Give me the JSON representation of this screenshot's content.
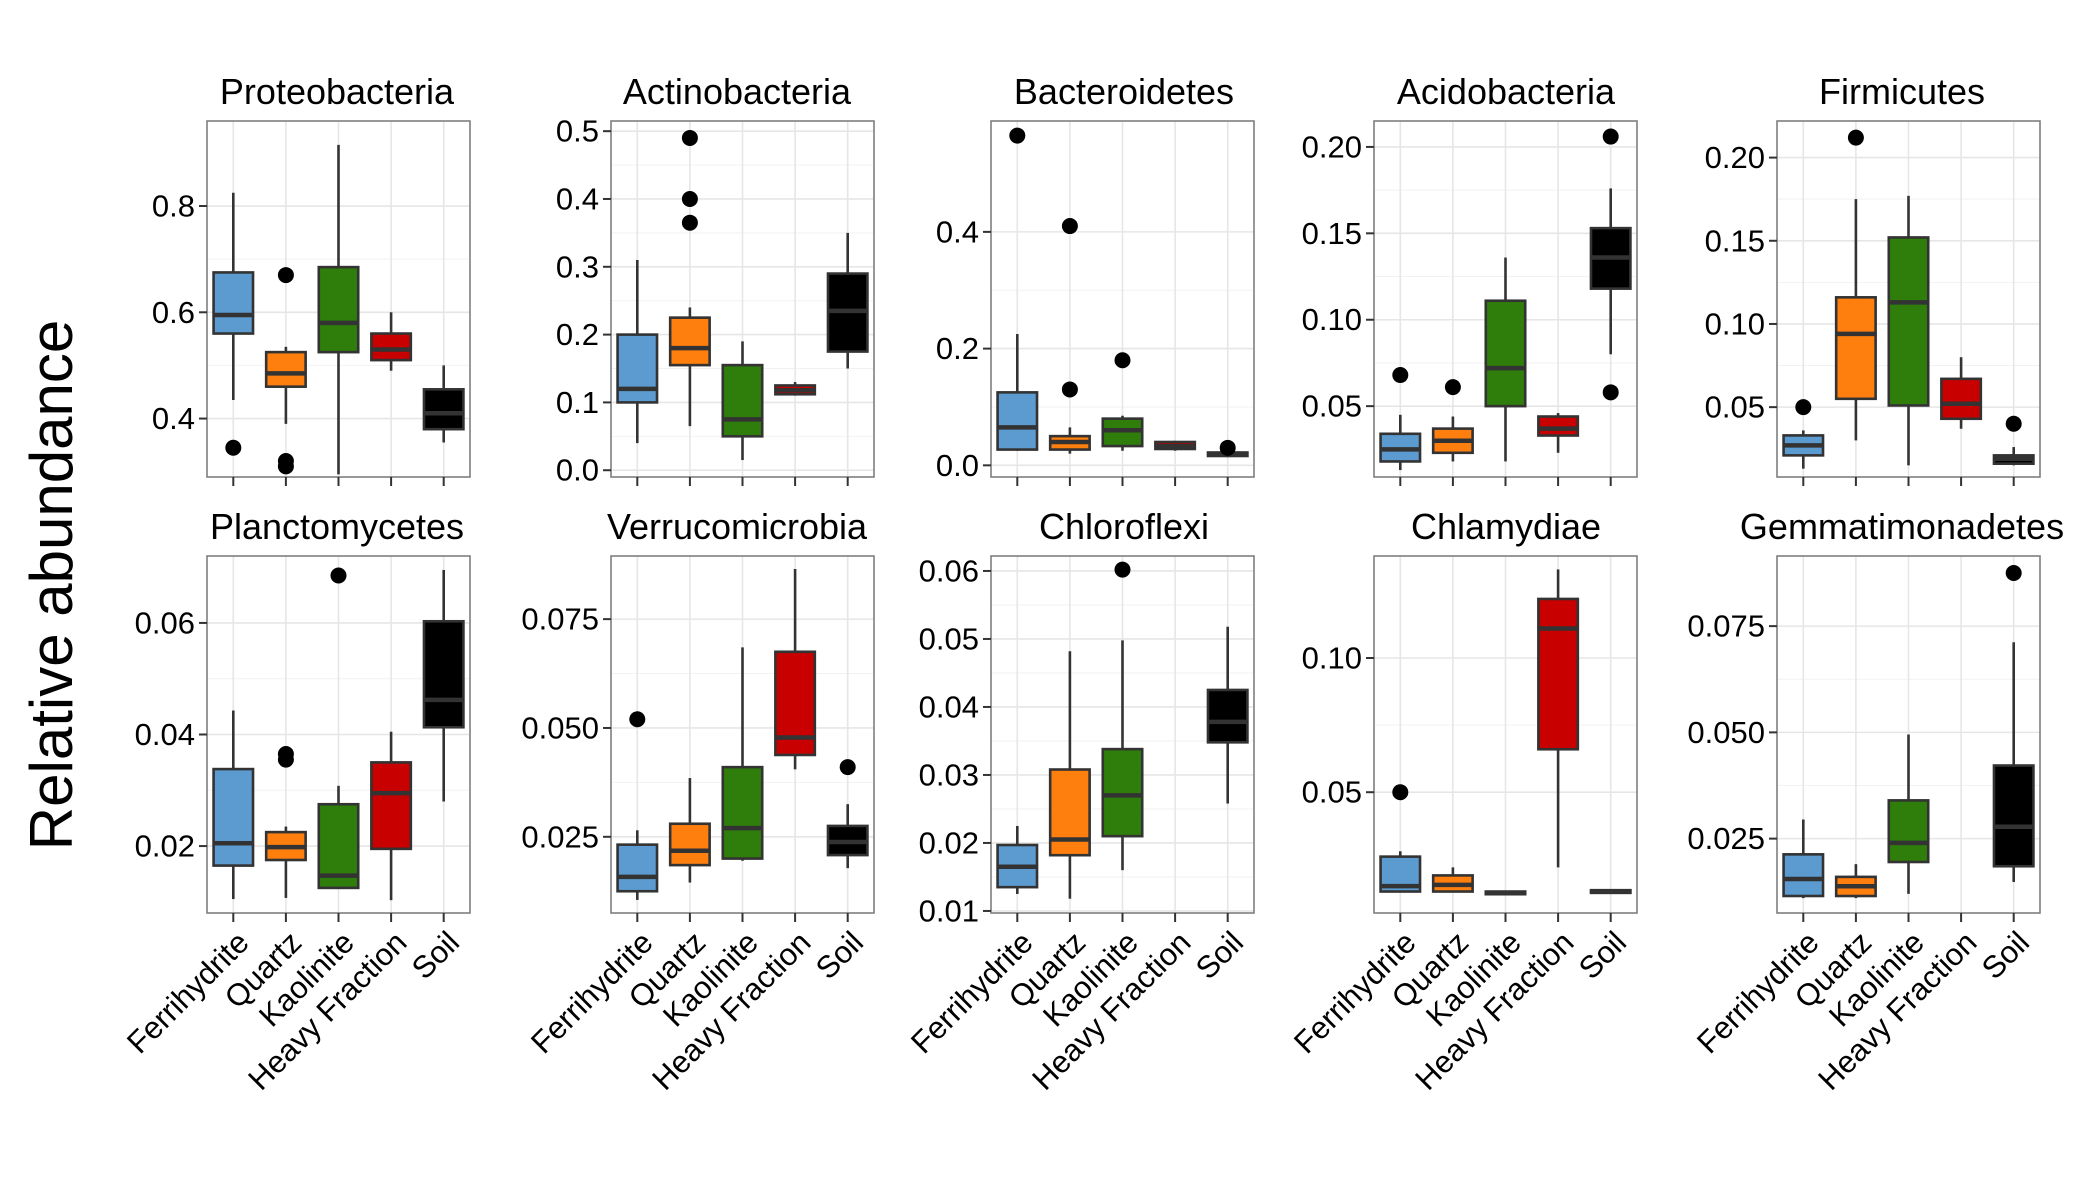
{
  "figure": {
    "ylabel": "Relative abundance",
    "groups": [
      "Ferrihydrite",
      "Quartz",
      "Kaolinite",
      "Heavy Fraction",
      "Soil"
    ],
    "colors": {
      "Ferrihydrite": "#5b9bd0",
      "Quartz": "#ff7f0e",
      "Kaolinite": "#2f7d0b",
      "Heavy Fraction": "#c80000",
      "Soil": "#000000"
    },
    "panel_background": "#ffffff",
    "grid_color": "#e6e6e6",
    "border_color": "#7f7f7f"
  },
  "chart_data": [
    {
      "type": "box",
      "title": "Proteobacteria",
      "categories": [
        "Ferrihydrite",
        "Quartz",
        "Kaolinite",
        "Heavy Fraction",
        "Soil"
      ],
      "ylim": [
        0.29,
        0.96
      ],
      "yticks": [
        0.4,
        0.6,
        0.8
      ],
      "ytick_labels": [
        "0.4",
        "0.6",
        "0.8"
      ],
      "boxes": [
        {
          "lo": 0.435,
          "q1": 0.56,
          "med": 0.595,
          "q3": 0.675,
          "hi": 0.825,
          "out": [
            0.345
          ]
        },
        {
          "lo": 0.39,
          "q1": 0.46,
          "med": 0.485,
          "q3": 0.525,
          "hi": 0.535,
          "out": [
            0.67,
            0.32,
            0.31
          ]
        },
        {
          "lo": 0.295,
          "q1": 0.525,
          "med": 0.58,
          "q3": 0.685,
          "hi": 0.915,
          "out": []
        },
        {
          "lo": 0.49,
          "q1": 0.51,
          "med": 0.53,
          "q3": 0.56,
          "hi": 0.6,
          "out": []
        },
        {
          "lo": 0.355,
          "q1": 0.38,
          "med": 0.41,
          "q3": 0.455,
          "hi": 0.5,
          "out": []
        }
      ]
    },
    {
      "type": "box",
      "title": "Actinobacteria",
      "categories": [
        "Ferrihydrite",
        "Quartz",
        "Kaolinite",
        "Heavy Fraction",
        "Soil"
      ],
      "ylim": [
        -0.01,
        0.515
      ],
      "yticks": [
        0,
        0.1,
        0.2,
        0.3,
        0.4,
        0.5
      ],
      "ytick_labels": [
        "0.0",
        "0.1",
        "0.2",
        "0.3",
        "0.4",
        "0.5"
      ],
      "boxes": [
        {
          "lo": 0.04,
          "q1": 0.1,
          "med": 0.12,
          "q3": 0.2,
          "hi": 0.31,
          "out": []
        },
        {
          "lo": 0.065,
          "q1": 0.155,
          "med": 0.18,
          "q3": 0.225,
          "hi": 0.24,
          "out": [
            0.49,
            0.4,
            0.365
          ]
        },
        {
          "lo": 0.015,
          "q1": 0.05,
          "med": 0.075,
          "q3": 0.155,
          "hi": 0.19,
          "out": []
        },
        {
          "lo": 0.11,
          "q1": 0.112,
          "med": 0.118,
          "q3": 0.125,
          "hi": 0.13,
          "out": []
        },
        {
          "lo": 0.15,
          "q1": 0.175,
          "med": 0.235,
          "q3": 0.29,
          "hi": 0.35,
          "out": []
        }
      ]
    },
    {
      "type": "box",
      "title": "Bacteroidetes",
      "categories": [
        "Ferrihydrite",
        "Quartz",
        "Kaolinite",
        "Heavy Fraction",
        "Soil"
      ],
      "ylim": [
        -0.02,
        0.59
      ],
      "yticks": [
        0,
        0.2,
        0.4
      ],
      "ytick_labels": [
        "0.0",
        "0.2",
        "0.4"
      ],
      "boxes": [
        {
          "lo": 0.025,
          "q1": 0.027,
          "med": 0.065,
          "q3": 0.125,
          "hi": 0.225,
          "out": [
            0.565
          ]
        },
        {
          "lo": 0.02,
          "q1": 0.027,
          "med": 0.04,
          "q3": 0.05,
          "hi": 0.065,
          "out": [
            0.41,
            0.13
          ]
        },
        {
          "lo": 0.025,
          "q1": 0.033,
          "med": 0.06,
          "q3": 0.08,
          "hi": 0.085,
          "out": [
            0.18
          ]
        },
        {
          "lo": 0.025,
          "q1": 0.028,
          "med": 0.033,
          "q3": 0.04,
          "hi": 0.042,
          "out": []
        },
        {
          "lo": 0.014,
          "q1": 0.016,
          "med": 0.019,
          "q3": 0.022,
          "hi": 0.024,
          "out": [
            0.03
          ]
        }
      ]
    },
    {
      "type": "box",
      "title": "Acidobacteria",
      "categories": [
        "Ferrihydrite",
        "Quartz",
        "Kaolinite",
        "Heavy Fraction",
        "Soil"
      ],
      "ylim": [
        0.009,
        0.215
      ],
      "yticks": [
        0.05,
        0.1,
        0.15,
        0.2
      ],
      "ytick_labels": [
        "0.05",
        "0.10",
        "0.15",
        "0.20"
      ],
      "boxes": [
        {
          "lo": 0.013,
          "q1": 0.018,
          "med": 0.025,
          "q3": 0.034,
          "hi": 0.045,
          "out": [
            0.068
          ]
        },
        {
          "lo": 0.018,
          "q1": 0.023,
          "med": 0.03,
          "q3": 0.037,
          "hi": 0.044,
          "out": [
            0.061
          ]
        },
        {
          "lo": 0.018,
          "q1": 0.05,
          "med": 0.072,
          "q3": 0.111,
          "hi": 0.136,
          "out": []
        },
        {
          "lo": 0.023,
          "q1": 0.033,
          "med": 0.037,
          "q3": 0.044,
          "hi": 0.046,
          "out": []
        },
        {
          "lo": 0.08,
          "q1": 0.118,
          "med": 0.136,
          "q3": 0.153,
          "hi": 0.176,
          "out": [
            0.206,
            0.058
          ]
        }
      ]
    },
    {
      "type": "box",
      "title": "Firmicutes",
      "categories": [
        "Ferrihydrite",
        "Quartz",
        "Kaolinite",
        "Heavy Fraction",
        "Soil"
      ],
      "ylim": [
        0.008,
        0.222
      ],
      "yticks": [
        0.05,
        0.1,
        0.15,
        0.2
      ],
      "ytick_labels": [
        "0.05",
        "0.10",
        "0.15",
        "0.20"
      ],
      "boxes": [
        {
          "lo": 0.013,
          "q1": 0.021,
          "med": 0.027,
          "q3": 0.033,
          "hi": 0.036,
          "out": [
            0.05
          ]
        },
        {
          "lo": 0.03,
          "q1": 0.055,
          "med": 0.094,
          "q3": 0.116,
          "hi": 0.175,
          "out": [
            0.212
          ]
        },
        {
          "lo": 0.015,
          "q1": 0.051,
          "med": 0.113,
          "q3": 0.152,
          "hi": 0.177,
          "out": []
        },
        {
          "lo": 0.037,
          "q1": 0.043,
          "med": 0.052,
          "q3": 0.067,
          "hi": 0.08,
          "out": []
        },
        {
          "lo": 0.015,
          "q1": 0.016,
          "med": 0.019,
          "q3": 0.021,
          "hi": 0.026,
          "out": [
            0.04
          ]
        }
      ]
    },
    {
      "type": "box",
      "title": "Planctomycetes",
      "categories": [
        "Ferrihydrite",
        "Quartz",
        "Kaolinite",
        "Heavy Fraction",
        "Soil"
      ],
      "ylim": [
        0.008,
        0.072
      ],
      "yticks": [
        0.02,
        0.04,
        0.06
      ],
      "ytick_labels": [
        "0.02",
        "0.04",
        "0.06"
      ],
      "boxes": [
        {
          "lo": 0.0105,
          "q1": 0.0165,
          "med": 0.0205,
          "q3": 0.0338,
          "hi": 0.0443,
          "out": []
        },
        {
          "lo": 0.0107,
          "q1": 0.0175,
          "med": 0.0198,
          "q3": 0.0225,
          "hi": 0.0235,
          "out": [
            0.0365,
            0.0355
          ]
        },
        {
          "lo": 0.0125,
          "q1": 0.0125,
          "med": 0.0147,
          "q3": 0.0275,
          "hi": 0.0308,
          "out": [
            0.0685
          ]
        },
        {
          "lo": 0.0103,
          "q1": 0.0195,
          "med": 0.0295,
          "q3": 0.035,
          "hi": 0.0405,
          "out": []
        },
        {
          "lo": 0.028,
          "q1": 0.0413,
          "med": 0.0462,
          "q3": 0.0603,
          "hi": 0.0695,
          "out": []
        }
      ]
    },
    {
      "type": "box",
      "title": "Verrucomicrobia",
      "categories": [
        "Ferrihydrite",
        "Quartz",
        "Kaolinite",
        "Heavy Fraction",
        "Soil"
      ],
      "ylim": [
        0.0075,
        0.0895
      ],
      "yticks": [
        0.025,
        0.05,
        0.075
      ],
      "ytick_labels": [
        "0.025",
        "0.050",
        "0.075"
      ],
      "boxes": [
        {
          "lo": 0.0105,
          "q1": 0.0125,
          "med": 0.0158,
          "q3": 0.0232,
          "hi": 0.0265,
          "out": [
            0.052
          ]
        },
        {
          "lo": 0.0145,
          "q1": 0.0185,
          "med": 0.0218,
          "q3": 0.028,
          "hi": 0.0385,
          "out": []
        },
        {
          "lo": 0.0195,
          "q1": 0.02,
          "med": 0.027,
          "q3": 0.041,
          "hi": 0.0685,
          "out": []
        },
        {
          "lo": 0.0405,
          "q1": 0.0438,
          "med": 0.0478,
          "q3": 0.0675,
          "hi": 0.0865,
          "out": []
        },
        {
          "lo": 0.0178,
          "q1": 0.0208,
          "med": 0.0238,
          "q3": 0.0275,
          "hi": 0.0325,
          "out": [
            0.041
          ]
        }
      ]
    },
    {
      "type": "box",
      "title": "Chloroflexi",
      "categories": [
        "Ferrihydrite",
        "Quartz",
        "Kaolinite",
        "Heavy Fraction",
        "Soil"
      ],
      "ylim": [
        0.0097,
        0.0622
      ],
      "yticks": [
        0.01,
        0.02,
        0.03,
        0.04,
        0.05,
        0.06
      ],
      "ytick_labels": [
        "0.01",
        "0.02",
        "0.03",
        "0.04",
        "0.05",
        "0.06"
      ],
      "boxes": [
        {
          "lo": 0.0125,
          "q1": 0.0135,
          "med": 0.0165,
          "q3": 0.0197,
          "hi": 0.0225,
          "out": []
        },
        {
          "lo": 0.0118,
          "q1": 0.0182,
          "med": 0.0205,
          "q3": 0.0308,
          "hi": 0.0482,
          "out": []
        },
        {
          "lo": 0.016,
          "q1": 0.021,
          "med": 0.027,
          "q3": 0.0338,
          "hi": 0.0498,
          "out": [
            0.0602
          ]
        },
        null,
        {
          "lo": 0.0258,
          "q1": 0.0348,
          "med": 0.0378,
          "q3": 0.0425,
          "hi": 0.0518,
          "out": []
        }
      ]
    },
    {
      "type": "box",
      "title": "Chlamydiae",
      "categories": [
        "Ferrihydrite",
        "Quartz",
        "Kaolinite",
        "Heavy Fraction",
        "Soil"
      ],
      "ylim": [
        0.005,
        0.138
      ],
      "yticks": [
        0.05,
        0.1
      ],
      "ytick_labels": [
        "0.05",
        "0.10"
      ],
      "boxes": [
        {
          "lo": 0.013,
          "q1": 0.013,
          "med": 0.015,
          "q3": 0.026,
          "hi": 0.028,
          "out": [
            0.05
          ]
        },
        {
          "lo": 0.013,
          "q1": 0.013,
          "med": 0.0155,
          "q3": 0.019,
          "hi": 0.022,
          "out": []
        },
        {
          "lo": 0.012,
          "q1": 0.012,
          "med": 0.0125,
          "q3": 0.013,
          "hi": 0.013,
          "out": []
        },
        {
          "lo": 0.022,
          "q1": 0.066,
          "med": 0.111,
          "q3": 0.122,
          "hi": 0.133,
          "out": []
        },
        {
          "lo": 0.0125,
          "q1": 0.0125,
          "med": 0.013,
          "q3": 0.0135,
          "hi": 0.0135,
          "out": []
        }
      ]
    },
    {
      "type": "box",
      "title": "Gemmatimonadetes",
      "categories": [
        "Ferrihydrite",
        "Quartz",
        "Kaolinite",
        "Heavy Fraction",
        "Soil"
      ],
      "ylim": [
        0.0075,
        0.0915
      ],
      "yticks": [
        0.025,
        0.05,
        0.075
      ],
      "ytick_labels": [
        "0.025",
        "0.050",
        "0.075"
      ],
      "boxes": [
        {
          "lo": 0.011,
          "q1": 0.0115,
          "med": 0.0155,
          "q3": 0.0213,
          "hi": 0.0295,
          "out": []
        },
        {
          "lo": 0.011,
          "q1": 0.0115,
          "med": 0.0138,
          "q3": 0.016,
          "hi": 0.019,
          "out": []
        },
        {
          "lo": 0.012,
          "q1": 0.0195,
          "med": 0.024,
          "q3": 0.034,
          "hi": 0.0495,
          "out": []
        },
        null,
        {
          "lo": 0.0148,
          "q1": 0.0185,
          "med": 0.0278,
          "q3": 0.0422,
          "hi": 0.0712,
          "out": [
            0.0875
          ]
        }
      ]
    }
  ]
}
